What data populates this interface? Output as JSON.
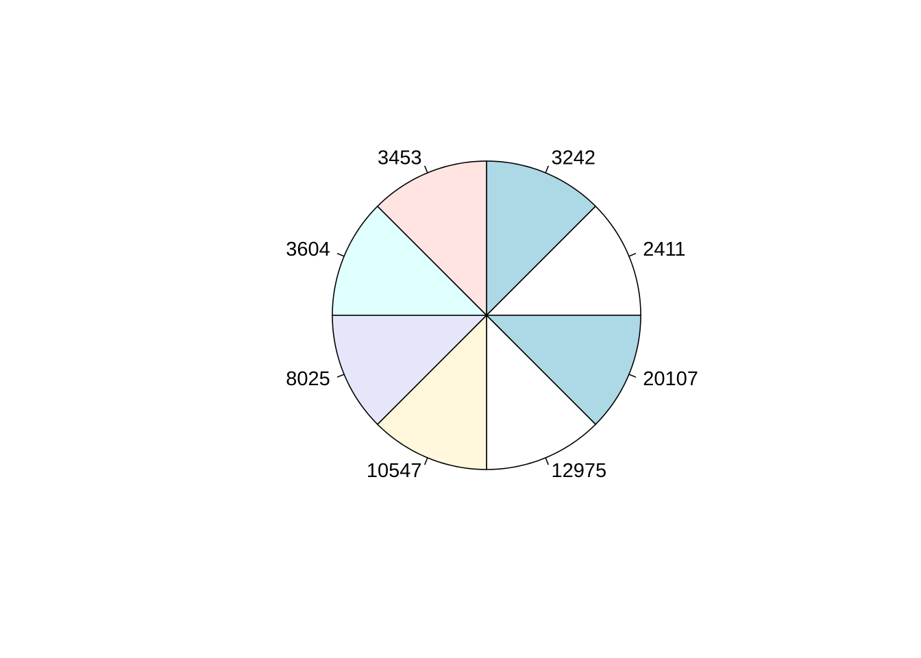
{
  "chart_data": {
    "type": "pie",
    "title": "",
    "labels": [
      "3242",
      "2411",
      "20107",
      "12975",
      "10547",
      "8025",
      "3604",
      "3453"
    ],
    "values": [
      1,
      1,
      1,
      1,
      1,
      1,
      1,
      1
    ],
    "colors": [
      "#ADD8E6",
      "#FFFFFF",
      "#ADD8E6",
      "#FFFFFF",
      "#FFF8DC",
      "#E6E6FA",
      "#E0FFFF",
      "#FFE4E1"
    ],
    "start_angle_deg": 90,
    "direction": "clockwise",
    "legend": "none"
  }
}
